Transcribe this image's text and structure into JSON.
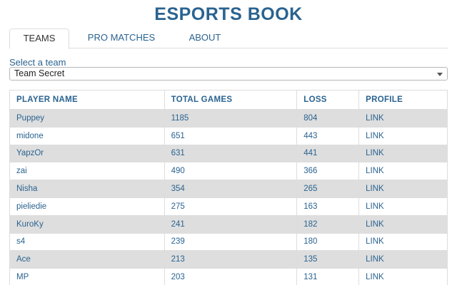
{
  "app": {
    "title": "ESPORTS BOOK"
  },
  "tabs": [
    {
      "label": "TEAMS",
      "active": true
    },
    {
      "label": "PRO MATCHES",
      "active": false
    },
    {
      "label": "ABOUT",
      "active": false
    }
  ],
  "team_select": {
    "label": "Select a team",
    "value": "Team Secret"
  },
  "table": {
    "headers": [
      "PLAYER NAME",
      "TOTAL GAMES",
      "LOSS",
      "PROFILE"
    ],
    "rows": [
      {
        "name": "Puppey",
        "games": "1185",
        "loss": "804",
        "profile": "LINK"
      },
      {
        "name": "midone",
        "games": "651",
        "loss": "443",
        "profile": "LINK"
      },
      {
        "name": "YapzOr",
        "games": "631",
        "loss": "441",
        "profile": "LINK"
      },
      {
        "name": "zai",
        "games": "490",
        "loss": "366",
        "profile": "LINK"
      },
      {
        "name": "Nisha",
        "games": "354",
        "loss": "265",
        "profile": "LINK"
      },
      {
        "name": "pieliedie",
        "games": "275",
        "loss": "163",
        "profile": "LINK"
      },
      {
        "name": "KuroKy",
        "games": "241",
        "loss": "182",
        "profile": "LINK"
      },
      {
        "name": "s4",
        "games": "239",
        "loss": "180",
        "profile": "LINK"
      },
      {
        "name": "Ace",
        "games": "213",
        "loss": "135",
        "profile": "LINK"
      },
      {
        "name": "MP",
        "games": "203",
        "loss": "131",
        "profile": "LINK"
      }
    ]
  },
  "colors": {
    "accent": "#2a6390",
    "row_stripe": "#dedede",
    "border": "#dddddd"
  }
}
